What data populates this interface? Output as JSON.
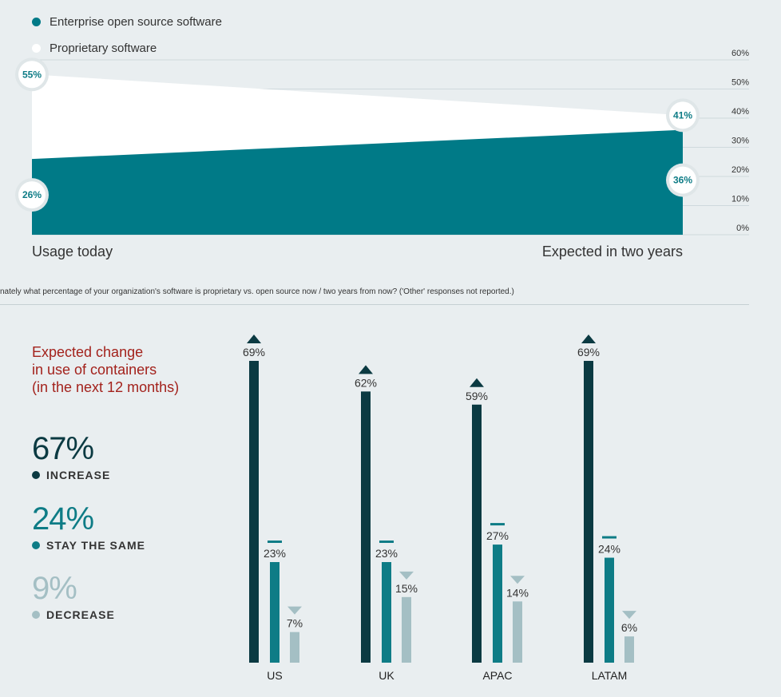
{
  "colors": {
    "open_source": "#007a87",
    "proprietary": "#ffffff",
    "increase": "#0b3a42",
    "same": "#0e7c86",
    "decrease": "#a4bfc4",
    "headline": "#a3221c"
  },
  "legend": {
    "items": [
      {
        "label": "Enterprise open source software",
        "color": "#007a87"
      },
      {
        "label": "Proprietary software",
        "color": "#ffffff"
      }
    ]
  },
  "footnote": "nately what percentage of your organization's software is proprietary vs. open source now / two years from now? ('Other' responses not reported.)",
  "summary": {
    "headline_lines": [
      "Expected change",
      "in use of containers",
      "(in the next 12 months)"
    ],
    "stats": [
      {
        "value": "67%",
        "label": "INCREASE",
        "color": "#0b3a42"
      },
      {
        "value": "24%",
        "label": "STAY THE SAME",
        "color": "#0e7c86"
      },
      {
        "value": "9%",
        "label": "DECREASE",
        "color": "#a4bfc4"
      }
    ]
  },
  "chart_data": [
    {
      "type": "area",
      "x": [
        "Usage today",
        "Expected in two years"
      ],
      "series": [
        {
          "name": "Enterprise open source software",
          "values": [
            26,
            36
          ],
          "labels": [
            "26%",
            "36%"
          ]
        },
        {
          "name": "Proprietary software",
          "values": [
            55,
            41
          ],
          "labels": [
            "55%",
            "41%"
          ]
        }
      ],
      "y_ticks": [
        "0%",
        "10%",
        "20%",
        "30%",
        "40%",
        "50%",
        "60%"
      ],
      "ylim": [
        0,
        60
      ],
      "grid": true,
      "legend_position": "top-left"
    },
    {
      "type": "bar",
      "categories": [
        "US",
        "UK",
        "APAC",
        "LATAM"
      ],
      "series": [
        {
          "name": "INCREASE",
          "values": [
            69,
            62,
            59,
            69
          ],
          "labels": [
            "69%",
            "62%",
            "59%",
            "69%"
          ]
        },
        {
          "name": "STAY THE SAME",
          "values": [
            23,
            23,
            27,
            24
          ],
          "labels": [
            "23%",
            "23%",
            "27%",
            "24%"
          ]
        },
        {
          "name": "DECREASE",
          "values": [
            7,
            15,
            14,
            6
          ],
          "labels": [
            "7%",
            "15%",
            "14%",
            "6%"
          ]
        }
      ],
      "ylim": [
        0,
        69
      ]
    }
  ]
}
